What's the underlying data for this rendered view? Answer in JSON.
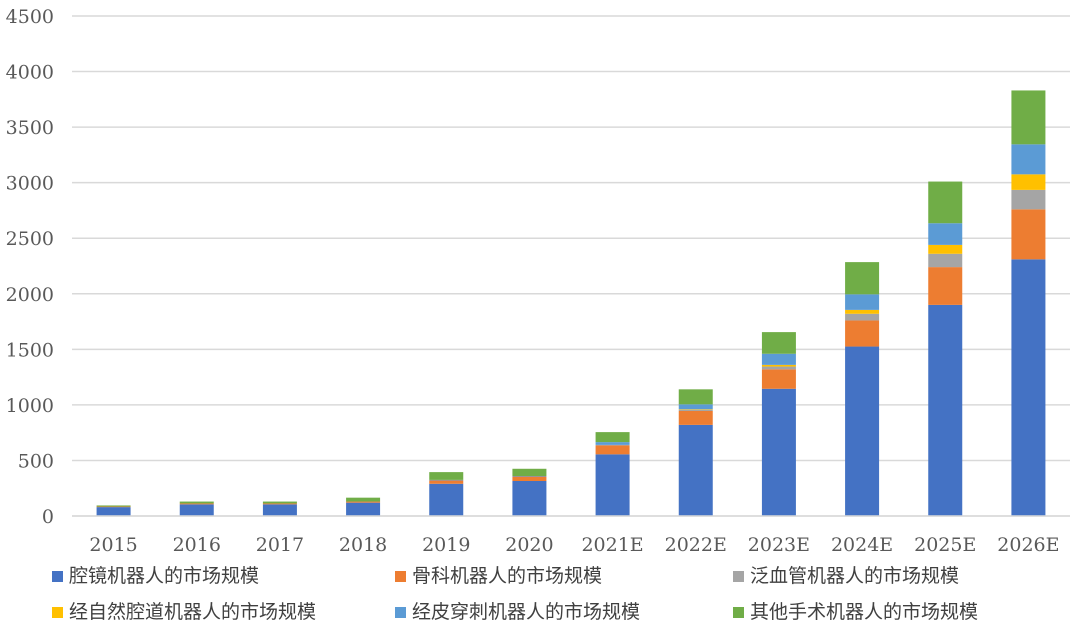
{
  "chart_data": {
    "type": "bar",
    "stacked": true,
    "categories": [
      "2015",
      "2016",
      "2017",
      "2018",
      "2019",
      "2020",
      "2021E",
      "2022E",
      "2023E",
      "2024E",
      "2025E",
      "2026E"
    ],
    "yticks": [
      "0",
      "500",
      "1000",
      "1500",
      "2000",
      "2500",
      "3000",
      "3500",
      "4000",
      "4500"
    ],
    "ylim": [
      0,
      4500
    ],
    "grid": true,
    "legend_position": "bottom",
    "series": [
      {
        "name": "腔镜机器人的市场规模",
        "color": "#4472C4",
        "values": [
          80,
          105,
          105,
          120,
          290,
          315,
          555,
          820,
          1145,
          1525,
          1900,
          2310
        ]
      },
      {
        "name": "骨科机器人的市场规模",
        "color": "#ED7D31",
        "values": [
          5,
          8,
          8,
          10,
          30,
          40,
          80,
          125,
          175,
          235,
          340,
          450
        ]
      },
      {
        "name": "泛血管机器人的市场规模",
        "color": "#A5A5A5",
        "values": [
          0,
          0,
          0,
          0,
          0,
          0,
          5,
          10,
          25,
          60,
          120,
          175
        ]
      },
      {
        "name": "经自然腔道机器人的市场规模",
        "color": "#FFC000",
        "values": [
          0,
          0,
          0,
          0,
          0,
          0,
          0,
          5,
          15,
          35,
          80,
          140
        ]
      },
      {
        "name": "经皮穿刺机器人的市场规模",
        "color": "#5B9BD5",
        "values": [
          0,
          0,
          0,
          0,
          5,
          5,
          25,
          45,
          100,
          140,
          195,
          270
        ]
      },
      {
        "name": "其他手术机器人的市场规模",
        "color": "#70AD47",
        "values": [
          10,
          17,
          17,
          35,
          70,
          65,
          90,
          135,
          195,
          290,
          375,
          485
        ]
      }
    ]
  }
}
